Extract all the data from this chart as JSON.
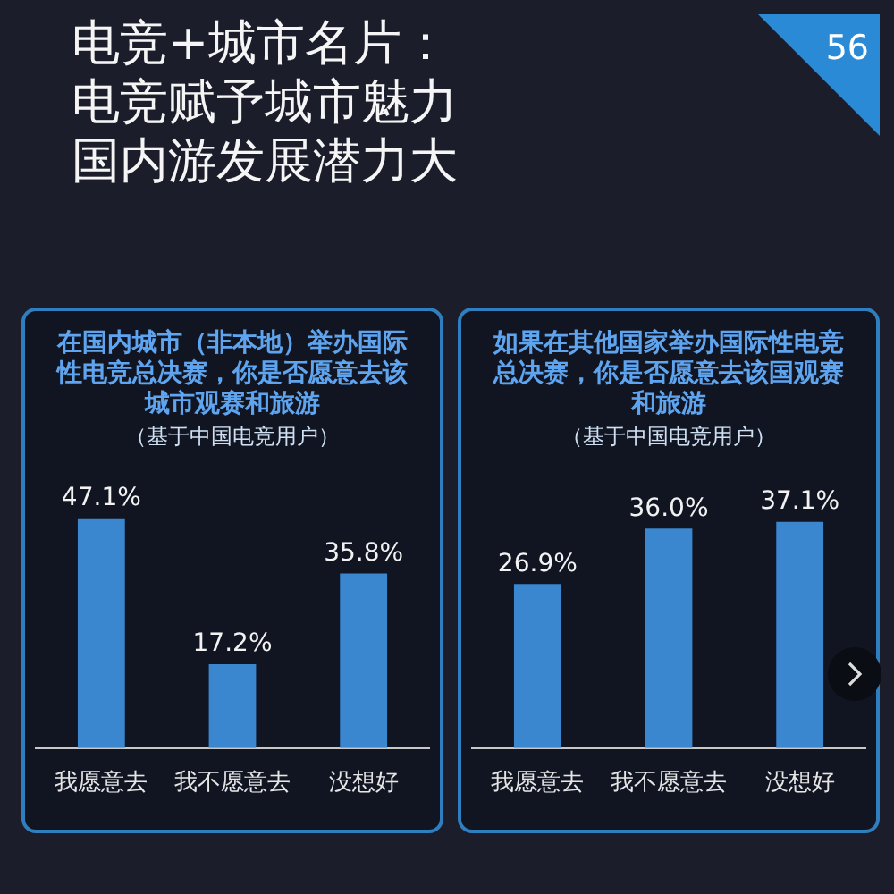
{
  "chart_data": [
    {
      "type": "bar",
      "title": "在国内城市（非本地）举办国际性电竞总决赛，你是否愿意去该城市观赛和旅游",
      "subtitle": "（基于中国电竞用户）",
      "annotations": [
        "电竞+城市名片：",
        "电竞赋予城市魅力",
        "国内游发展潜力大",
        "56"
      ],
      "categories": [
        "我愿意去",
        "我不愿意去",
        "没想好"
      ],
      "values": [
        47.1,
        17.2,
        35.8
      ],
      "value_labels": [
        "47.1%",
        "17.2%",
        "35.8%"
      ],
      "color": "#3a86cf",
      "legend": false,
      "tick_labels": "x"
    },
    {
      "type": "bar",
      "title": "如果在其他国家举办国际性电竞总决赛，你是否愿意去该国观赛和旅游",
      "subtitle": "（基于中国电竞用户）",
      "categories": [
        "我愿意去",
        "我不愿意去",
        "没想好"
      ],
      "values": [
        26.9,
        36.0,
        37.1
      ],
      "value_labels": [
        "26.9%",
        "36.0%",
        "37.1%"
      ],
      "color": "#3a86cf",
      "legend": false,
      "tick_labels": "x"
    }
  ]
}
